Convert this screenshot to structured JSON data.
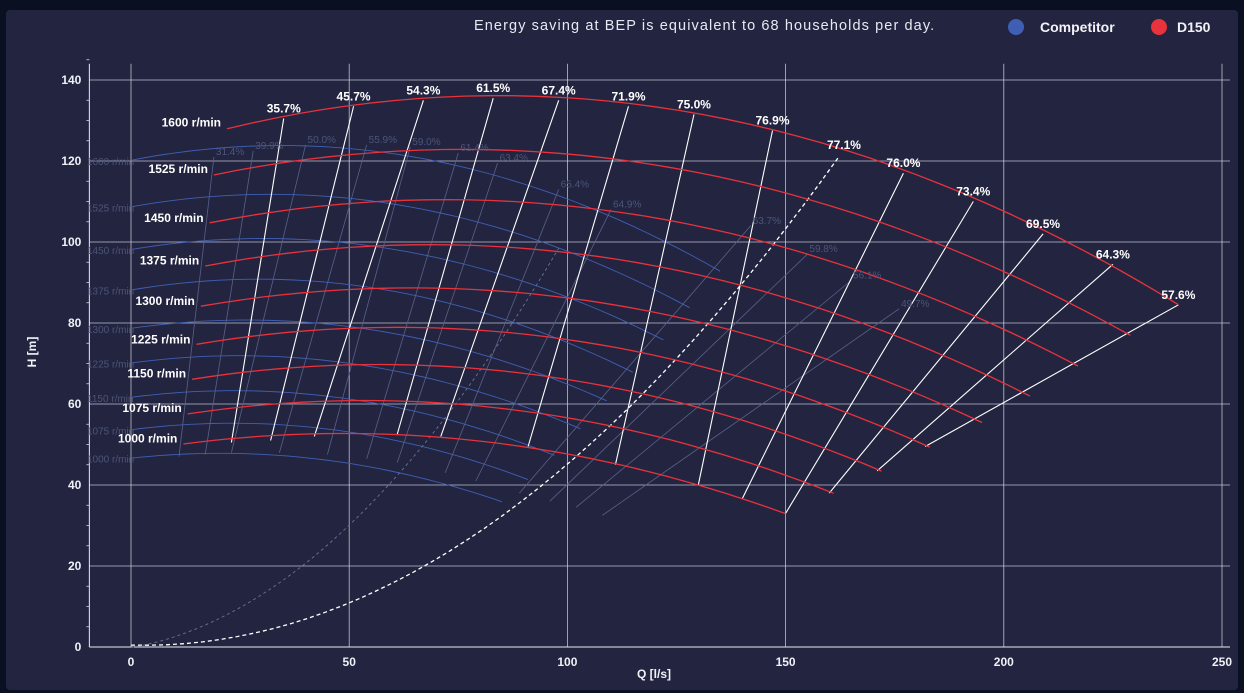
{
  "header": {
    "note": "Energy saving at BEP is equivalent to 68 households per day."
  },
  "legend": {
    "items": [
      {
        "label": "Competitor",
        "color": "#3f5fb5"
      },
      {
        "label": "D150",
        "color": "#e8323c"
      }
    ]
  },
  "chart_data": {
    "type": "line",
    "title": "",
    "xlabel": "Q [l/s]",
    "ylabel": "H [m]",
    "xlim": [
      -10,
      250
    ],
    "ylim": [
      0,
      145
    ],
    "xticks": [
      0,
      50,
      100,
      150,
      200,
      250
    ],
    "yticks": [
      0,
      20,
      40,
      60,
      80,
      100,
      120,
      140
    ],
    "grid": true,
    "legend_position": "top-right",
    "colors": {
      "d150": "#e8323c",
      "competitor": "#3f5fb5",
      "iso": "#ffffff",
      "competitor_iso": "#5a6088"
    },
    "series": [
      {
        "name": "D150",
        "speed_curves": [
          {
            "label": "1600 r/min",
            "x": [
              22,
              80,
              160,
              240
            ],
            "y": [
              128,
              136,
              124,
              84.5
            ]
          },
          {
            "label": "1525 r/min",
            "x": [
              19,
              75,
              150,
              229
            ],
            "y": [
              116.5,
              123,
              112,
              77
            ]
          },
          {
            "label": "1450 r/min",
            "x": [
              18,
              70,
              140,
              217
            ],
            "y": [
              104.5,
              111,
              101,
              69.5
            ]
          },
          {
            "label": "1375 r/min",
            "x": [
              17,
              67,
              133,
              206
            ],
            "y": [
              94,
              99.5,
              91,
              62
            ]
          },
          {
            "label": "1300 r/min",
            "x": [
              16,
              63,
              126,
              195
            ],
            "y": [
              84,
              89,
              81,
              55.5
            ]
          },
          {
            "label": "1225 r/min",
            "x": [
              15,
              60,
              118,
              183
            ],
            "y": [
              74.5,
              79.5,
              72,
              49.5
            ]
          },
          {
            "label": "1150 r/min",
            "x": [
              14,
              55,
              112,
              172
            ],
            "y": [
              66,
              70,
              63.5,
              43.5
            ]
          },
          {
            "label": "1075 r/min",
            "x": [
              13,
              52,
              105,
              161
            ],
            "y": [
              57.5,
              61,
              55.5,
              38
            ]
          },
          {
            "label": "1000 r/min",
            "x": [
              12,
              48,
              97,
              150
            ],
            "y": [
              50,
              53,
              48,
              33
            ]
          }
        ],
        "efficiency_lines": [
          {
            "label": "35.7%",
            "x": [
              23,
              35
            ],
            "y": [
              50.5,
              130.5
            ]
          },
          {
            "label": "45.7%",
            "x": [
              32,
              51
            ],
            "y": [
              51,
              133.5
            ]
          },
          {
            "label": "54.3%",
            "x": [
              42,
              67
            ],
            "y": [
              52,
              135
            ]
          },
          {
            "label": "61.5%",
            "x": [
              61,
              83
            ],
            "y": [
              52.5,
              135.5
            ]
          },
          {
            "label": "67.4%",
            "x": [
              71,
              98
            ],
            "y": [
              52,
              135
            ]
          },
          {
            "label": "71.9%",
            "x": [
              91,
              114
            ],
            "y": [
              49.5,
              133.5
            ]
          },
          {
            "label": "75.0%",
            "x": [
              111,
              129
            ],
            "y": [
              45,
              131.5
            ]
          },
          {
            "label": "76.9%",
            "x": [
              130,
              147
            ],
            "y": [
              40,
              127.5
            ]
          },
          {
            "label": "76.0%",
            "x": [
              140,
              177
            ],
            "y": [
              36.5,
              117
            ]
          },
          {
            "label": "73.4%",
            "x": [
              150,
              193
            ],
            "y": [
              33,
              110
            ]
          },
          {
            "label": "69.5%",
            "x": [
              160,
              209
            ],
            "y": [
              38,
              102
            ]
          },
          {
            "label": "64.3%",
            "x": [
              171,
              225
            ],
            "y": [
              43.5,
              94.5
            ]
          },
          {
            "label": "57.6%",
            "x": [
              182,
              240
            ],
            "y": [
              49.5,
              84.5
            ]
          }
        ],
        "bep_curve": {
          "label": "77.1%",
          "x": [
            0,
            50,
            100,
            140,
            162
          ],
          "y": [
            0,
            12,
            45,
            88,
            122
          ]
        }
      },
      {
        "name": "Competitor",
        "speed_curves": [
          {
            "label": "1600 r/min",
            "x": [
              0,
              45,
              95,
              135
            ],
            "y": [
              120,
              124,
              112,
              93
            ]
          },
          {
            "label": "1525 r/min",
            "x": [
              0,
              42,
              90,
              128
            ],
            "y": [
              108.5,
              112,
              101,
              84
            ]
          },
          {
            "label": "1450 r/min",
            "x": [
              0,
              40,
              85,
              122
            ],
            "y": [
              98,
              101,
              91.5,
              76
            ]
          },
          {
            "label": "1375 r/min",
            "x": [
              0,
              38,
              81,
              115
            ],
            "y": [
              88,
              91,
              82,
              68
            ]
          },
          {
            "label": "1300 r/min",
            "x": [
              0,
              36,
              76,
              109
            ],
            "y": [
              78.5,
              81,
              73,
              61
            ]
          },
          {
            "label": "1225 r/min",
            "x": [
              0,
              34,
              72,
              103
            ],
            "y": [
              70,
              72,
              65,
              54
            ]
          },
          {
            "label": "1150 r/min",
            "x": [
              0,
              32,
              68,
              97
            ],
            "y": [
              61.5,
              63.5,
              57,
              47.5
            ]
          },
          {
            "label": "1075 r/min",
            "x": [
              0,
              30,
              64,
              91
            ],
            "y": [
              53.5,
              55.5,
              49.8,
              41.5
            ]
          },
          {
            "label": "1000 r/min",
            "x": [
              0,
              28,
              60,
              85
            ],
            "y": [
              46.5,
              48,
              43,
              36
            ]
          }
        ],
        "efficiency_labels": [
          "31.4%",
          "39.9%",
          "50.0%",
          "55.9%",
          "59.0%",
          "61.4%",
          "63.4%",
          "65.4%",
          "64.9%",
          "63.7%",
          "59.8%",
          "56.1%",
          "49.7%"
        ],
        "efficiency_lines": [
          {
            "x": [
              11,
              19
            ],
            "y": [
              47,
              121
            ]
          },
          {
            "x": [
              17,
              28
            ],
            "y": [
              47.5,
              122.5
            ]
          },
          {
            "x": [
              23,
              40
            ],
            "y": [
              48,
              124
            ]
          },
          {
            "x": [
              34,
              54
            ],
            "y": [
              48,
              124
            ]
          },
          {
            "x": [
              45,
              64
            ],
            "y": [
              47.5,
              123.5
            ]
          },
          {
            "x": [
              54,
              75
            ],
            "y": [
              46.5,
              122
            ]
          },
          {
            "x": [
              61,
              84
            ],
            "y": [
              45.5,
              119.5
            ]
          },
          {
            "x": [
              72,
              98
            ],
            "y": [
              43,
              113
            ]
          },
          {
            "x": [
              79,
              110
            ],
            "y": [
              41,
              108
            ]
          },
          {
            "x": [
              89,
              142
            ],
            "y": [
              38,
              104
            ]
          },
          {
            "x": [
              96,
              155
            ],
            "y": [
              36,
              97
            ]
          },
          {
            "x": [
              102,
              165
            ],
            "y": [
              34.5,
              90.5
            ]
          },
          {
            "x": [
              108,
              176
            ],
            "y": [
              32.5,
              83.5
            ]
          }
        ],
        "bep_curve": {
          "x": [
            0,
            50,
            72,
            98
          ],
          "y": [
            0,
            29,
            58,
            98
          ]
        }
      }
    ]
  }
}
